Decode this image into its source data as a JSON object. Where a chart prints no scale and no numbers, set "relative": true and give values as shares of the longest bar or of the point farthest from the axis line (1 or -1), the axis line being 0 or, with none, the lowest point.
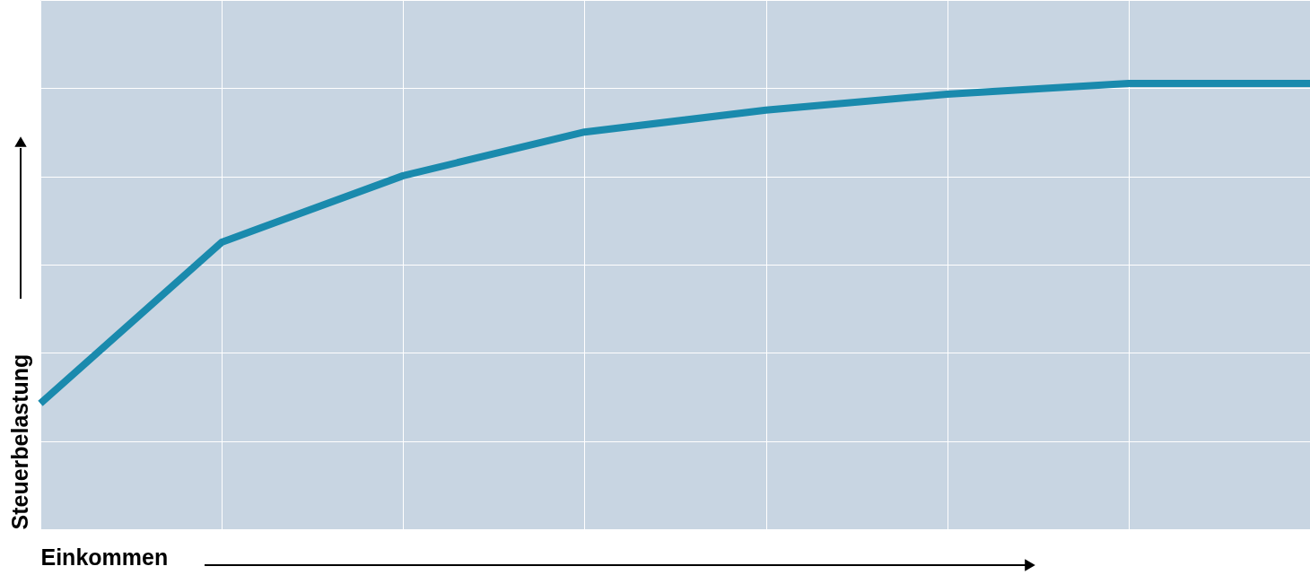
{
  "chart_data": {
    "type": "line",
    "relative": true,
    "xlabel": "Einkommen",
    "ylabel": "Steuerbelastung",
    "grid": true,
    "marker": "none",
    "line_style": "solid",
    "categories": [
      null,
      null,
      null,
      null,
      null,
      null,
      null,
      null
    ],
    "series": [
      {
        "color": "#1a8aad",
        "values": [
          0.282,
          0.644,
          0.793,
          0.891,
          0.94,
          0.976,
          1,
          1
        ]
      }
    ]
  }
}
